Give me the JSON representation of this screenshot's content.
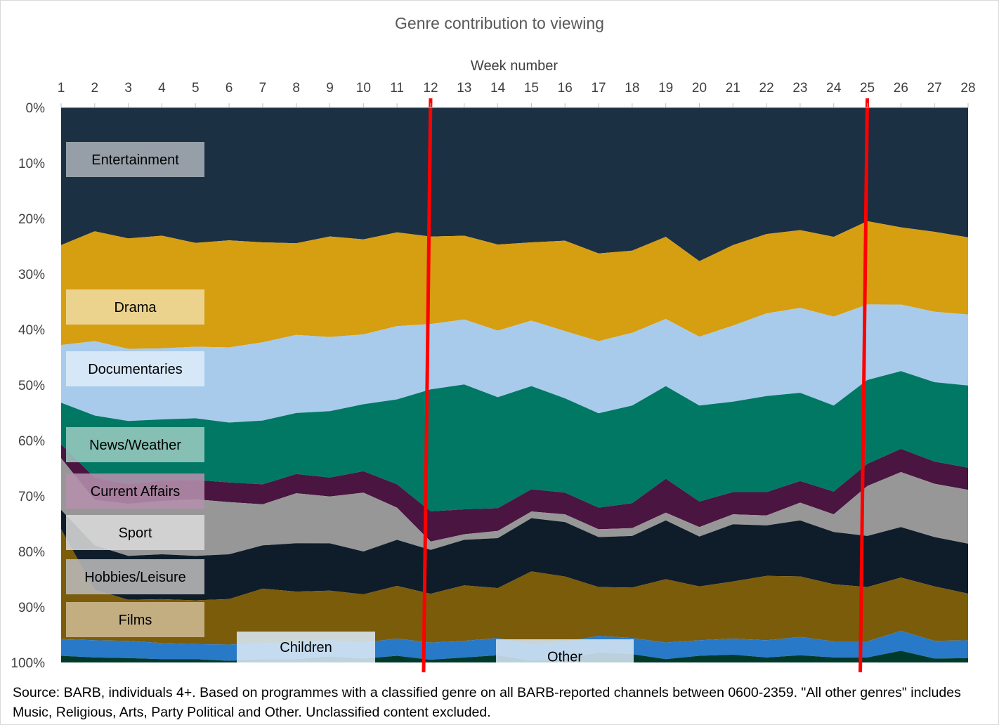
{
  "chart_data": {
    "type": "area",
    "stacked": "percent",
    "title": "Genre contribution to viewing",
    "xlabel": "Week number",
    "x_axis_position": "top",
    "ylabel": "",
    "ylim": [
      0,
      100
    ],
    "y_reversed": true,
    "y_ticks": [
      "0%",
      "10%",
      "20%",
      "30%",
      "40%",
      "50%",
      "60%",
      "70%",
      "80%",
      "90%",
      "100%"
    ],
    "x": [
      1,
      2,
      3,
      4,
      5,
      6,
      7,
      8,
      9,
      10,
      11,
      12,
      13,
      14,
      15,
      16,
      17,
      18,
      19,
      20,
      21,
      22,
      23,
      24,
      25,
      26,
      27,
      28
    ],
    "series": [
      {
        "name": "Entertainment",
        "color": "#1c3044",
        "values": [
          24.8,
          22.3,
          23.6,
          23.1,
          24.4,
          23.7,
          24.3,
          24.7,
          23.7,
          24.0,
          22.5,
          23.5,
          23.1,
          24.7,
          24.3,
          24.0,
          26.3,
          25.8,
          23.3,
          27.7,
          24.8,
          22.8,
          22.1,
          23.3,
          20.5,
          21.6,
          22.4,
          23.4
        ]
      },
      {
        "name": "Drama",
        "color": "#d69e11",
        "values": [
          18.0,
          19.8,
          19.9,
          20.3,
          18.7,
          19.1,
          18.0,
          16.7,
          18.5,
          17.3,
          16.9,
          15.9,
          15.1,
          15.5,
          14.1,
          16.3,
          15.8,
          14.8,
          14.8,
          13.6,
          14.5,
          14.3,
          14.0,
          14.4,
          15.0,
          13.9,
          14.4,
          13.9
        ]
      },
      {
        "name": "Documentaries",
        "color": "#a8cbec",
        "values": [
          10.4,
          13.4,
          13.0,
          12.8,
          12.9,
          13.4,
          14.1,
          14.2,
          13.6,
          12.7,
          13.2,
          11.9,
          11.7,
          12.0,
          11.8,
          12.1,
          13.0,
          13.1,
          12.1,
          12.4,
          13.7,
          14.9,
          15.3,
          16.0,
          13.6,
          12.0,
          12.7,
          12.8
        ]
      },
      {
        "name": "News/Weather",
        "color": "#007864",
        "values": [
          7.5,
          11.2,
          11.4,
          11.0,
          11.1,
          10.7,
          11.5,
          11.1,
          12.2,
          12.2,
          15.3,
          22.2,
          22.5,
          20.0,
          18.6,
          17.0,
          17.0,
          17.6,
          16.7,
          17.3,
          16.3,
          17.3,
          15.9,
          15.5,
          15.1,
          14.0,
          14.3,
          14.8
        ]
      },
      {
        "name": "Current Affairs",
        "color": "#4a1540",
        "values": [
          2.5,
          4.0,
          3.5,
          3.7,
          3.5,
          3.5,
          3.6,
          3.5,
          3.5,
          3.9,
          4.2,
          5.5,
          4.5,
          4.1,
          4.0,
          3.9,
          3.9,
          4.5,
          6.1,
          4.6,
          4.0,
          4.2,
          3.9,
          4.1,
          4.0,
          4.2,
          4.0,
          4.0
        ]
      },
      {
        "name": "Sport",
        "color": "#979797",
        "values": [
          9.3,
          8.2,
          9.4,
          9.6,
          10.2,
          9.3,
          7.4,
          9.1,
          8.6,
          10.7,
          5.8,
          1.5,
          1.0,
          1.3,
          1.2,
          1.4,
          1.4,
          1.4,
          1.4,
          1.7,
          1.8,
          1.8,
          3.2,
          3.2,
          9.0,
          9.9,
          9.6,
          9.7
        ]
      },
      {
        "name": "Hobbies/Leisure",
        "color": "#0f1d2a",
        "values": [
          3.5,
          8.0,
          7.9,
          8.1,
          8.0,
          8.0,
          7.8,
          8.8,
          8.7,
          7.8,
          8.3,
          8.0,
          8.2,
          9.0,
          9.6,
          9.8,
          9.0,
          9.3,
          10.6,
          9.0,
          10.3,
          9.1,
          10.1,
          9.4,
          9.2,
          9.1,
          8.9,
          9.0
        ]
      },
      {
        "name": "Films",
        "color": "#7b5c0b",
        "values": [
          19.8,
          9.1,
          7.4,
          7.9,
          7.9,
          8.1,
          9.8,
          9.3,
          9.1,
          8.8,
          9.5,
          8.9,
          10.0,
          9.0,
          13.2,
          11.8,
          8.8,
          9.1,
          11.4,
          9.7,
          10.3,
          11.6,
          10.9,
          10.3,
          9.8,
          9.6,
          9.8,
          8.4
        ]
      },
      {
        "name": "Children",
        "color": "#2979c9",
        "values": [
          3.0,
          3.1,
          3.1,
          2.9,
          2.7,
          2.9,
          2.9,
          3.0,
          3.0,
          2.9,
          3.1,
          3.1,
          3.0,
          3.1,
          2.9,
          3.1,
          3.0,
          2.9,
          3.0,
          2.8,
          2.9,
          3.1,
          3.3,
          2.9,
          2.9,
          3.6,
          3.2,
          3.2
        ]
      },
      {
        "name": "Other",
        "color": "#003a2a",
        "values": [
          1.2,
          0.9,
          0.8,
          0.6,
          0.6,
          0.3,
          0.6,
          0.6,
          1.1,
          0.7,
          1.2,
          0.5,
          0.9,
          1.3,
          0.3,
          0.6,
          1.8,
          1.5,
          0.6,
          1.2,
          1.4,
          0.9,
          1.3,
          0.9,
          0.9,
          2.1,
          0.7,
          0.8
        ]
      }
    ],
    "band_labels": [
      {
        "text": "Entertainment",
        "color": "#a7aeb6"
      },
      {
        "text": "Drama",
        "color": "#eedb9f"
      },
      {
        "text": "Documentaries",
        "color": "#dcebf8"
      },
      {
        "text": "News/Weather",
        "color": "#98c8be"
      },
      {
        "text": "Current Affairs",
        "color": "#b590ac"
      },
      {
        "text": "Sport",
        "color": "#d9d9d9"
      },
      {
        "text": "Hobbies/Leisure",
        "color": "#b9b9b9"
      },
      {
        "text": "Films",
        "color": "#cdb993"
      },
      {
        "text": "Children",
        "color": "#dae8f5"
      },
      {
        "text": "Other",
        "color": "#d4e5f3"
      }
    ],
    "markers": {
      "weeks": [
        12,
        25
      ],
      "color": "#ff0000"
    },
    "grid": false
  },
  "source_note": "Source: BARB, individuals 4+. Based on programmes with a classified genre on all BARB-reported channels between 0600-2359. \"All other genres\" includes Music, Religious, Arts, Party Political and Other. Unclassified content excluded."
}
